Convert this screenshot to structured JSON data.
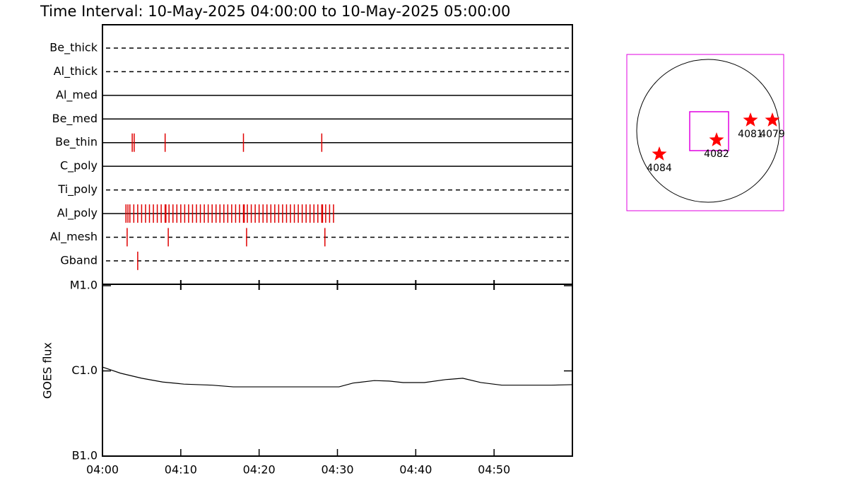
{
  "title": "Time Interval: 10-May-2025 04:00:00 to 10-May-2025 05:00:00",
  "chart_data": [
    {
      "type": "timeline",
      "categories": [
        "Be_thick",
        "Al_thick",
        "Al_med",
        "Be_med",
        "Be_thin",
        "C_poly",
        "Ti_poly",
        "Al_poly",
        "Al_mesh",
        "Gband"
      ],
      "line_styles": [
        "dashed",
        "dashed",
        "solid",
        "solid",
        "solid",
        "solid",
        "dashed",
        "solid",
        "dashed",
        "dashed"
      ],
      "color": "#e00000",
      "events": [
        [],
        [],
        [],
        [],
        [
          3.8,
          4.05,
          8.0,
          18.0,
          28.0
        ],
        [],
        [],
        [
          3.0,
          3.25,
          3.5,
          4.0,
          4.5,
          5.0,
          5.5,
          6.0,
          6.5,
          7.0,
          7.5,
          8.0,
          8.1,
          8.5,
          9.0,
          9.5,
          10.0,
          10.5,
          11.0,
          11.5,
          12.0,
          12.5,
          13.0,
          13.5,
          14.0,
          14.5,
          15.0,
          15.5,
          16.0,
          16.5,
          17.0,
          17.5,
          18.0,
          18.1,
          18.5,
          19.0,
          19.5,
          20.0,
          20.5,
          21.0,
          21.5,
          22.0,
          22.5,
          23.0,
          23.5,
          24.0,
          24.5,
          25.0,
          25.5,
          26.0,
          26.5,
          27.0,
          27.5,
          28.0,
          28.1,
          28.5,
          29.0,
          29.5
        ],
        [
          3.15,
          8.4,
          18.4,
          28.4
        ],
        [
          4.5
        ]
      ],
      "xlim": [
        0,
        60
      ]
    },
    {
      "type": "line",
      "ylabel": "GOES flux",
      "log_scale": true,
      "color": "#000000",
      "x": [
        0,
        2.3,
        5.0,
        7.7,
        10.4,
        14.0,
        16.7,
        19.4,
        23.0,
        26.6,
        30.2,
        32.0,
        34.7,
        36.6,
        38.4,
        41.1,
        43.8,
        46.0,
        48.3,
        51.0,
        54.6,
        57.3,
        60
      ],
      "values": [
        1.11e-06,
        9.4e-07,
        8.2e-07,
        7.4e-07,
        7e-07,
        6.8e-07,
        6.5e-07,
        6.5e-07,
        6.5e-07,
        6.5e-07,
        6.5e-07,
        7.2e-07,
        7.7e-07,
        7.6e-07,
        7.3e-07,
        7.3e-07,
        7.9e-07,
        8.2e-07,
        7.3e-07,
        6.8e-07,
        6.8e-07,
        6.8e-07,
        6.9e-07
      ],
      "ylim": [
        1e-07,
        1e-05
      ],
      "yticks": [
        {
          "value": 1e-07,
          "label": "B1.0"
        },
        {
          "value": 1e-06,
          "label": "C1.0"
        },
        {
          "value": 1e-05,
          "label": "M1.0"
        }
      ],
      "xlim": [
        0,
        60
      ],
      "xticks": [
        {
          "value": 0,
          "label": "04:00"
        },
        {
          "value": 10,
          "label": "04:10"
        },
        {
          "value": 20,
          "label": "04:20"
        },
        {
          "value": 30,
          "label": "04:30"
        },
        {
          "value": 40,
          "label": "04:40"
        },
        {
          "value": 50,
          "label": "04:50"
        }
      ]
    }
  ],
  "solar_map": {
    "color": "#ff0000",
    "regions": [
      {
        "label": "4084"
      },
      {
        "label": "4082"
      },
      {
        "label": "4081"
      },
      {
        "label": "4079"
      }
    ]
  }
}
